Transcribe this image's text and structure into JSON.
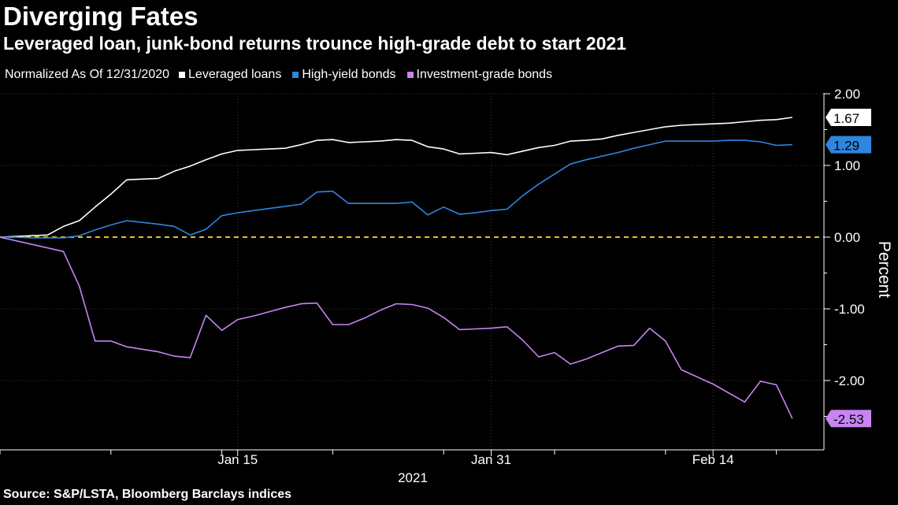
{
  "chart_data": {
    "type": "line",
    "title": "Diverging Fates",
    "subtitle": "Leveraged loan, junk-bond returns trounce high-grade debt to start 2021",
    "legend_note": "Normalized As Of 12/31/2020",
    "ylabel": "Percent",
    "xlabel": "2021",
    "source": "Source: S&P/LSTA, Bloomberg Barclays indices",
    "ylim": [
      -2.9,
      2.0
    ],
    "xlim": [
      "2020-12-31",
      "2021-02-21"
    ],
    "y_ticks": [
      {
        "value": 2.0,
        "label": "2.00"
      },
      {
        "value": 1.0,
        "label": "1.00"
      },
      {
        "value": 0.0,
        "label": "0.00"
      },
      {
        "value": -1.0,
        "label": "-1.00"
      },
      {
        "value": -2.0,
        "label": "-2.00"
      }
    ],
    "x_ticks": [
      {
        "date": "2021-01-15",
        "label": "Jan 15"
      },
      {
        "date": "2021-01-31",
        "label": "Jan 31"
      },
      {
        "date": "2021-02-14",
        "label": "Feb 14"
      }
    ],
    "zero_line_color": "#e6c21e",
    "series": [
      {
        "name": "Leveraged loans",
        "color": "#ffffff",
        "end_label": "1.67",
        "points": [
          [
            "2020-12-31",
            0.0
          ],
          [
            "2021-01-01",
            0.01
          ],
          [
            "2021-01-02",
            0.02
          ],
          [
            "2021-01-03",
            0.03
          ],
          [
            "2021-01-04",
            0.15
          ],
          [
            "2021-01-05",
            0.23
          ],
          [
            "2021-01-06",
            0.42
          ],
          [
            "2021-01-07",
            0.6
          ],
          [
            "2021-01-08",
            0.8
          ],
          [
            "2021-01-09",
            0.81
          ],
          [
            "2021-01-10",
            0.82
          ],
          [
            "2021-01-11",
            0.92
          ],
          [
            "2021-01-12",
            0.99
          ],
          [
            "2021-01-13",
            1.08
          ],
          [
            "2021-01-14",
            1.16
          ],
          [
            "2021-01-15",
            1.21
          ],
          [
            "2021-01-16",
            1.22
          ],
          [
            "2021-01-17",
            1.23
          ],
          [
            "2021-01-18",
            1.24
          ],
          [
            "2021-01-19",
            1.29
          ],
          [
            "2021-01-20",
            1.35
          ],
          [
            "2021-01-21",
            1.36
          ],
          [
            "2021-01-22",
            1.32
          ],
          [
            "2021-01-23",
            1.33
          ],
          [
            "2021-01-24",
            1.34
          ],
          [
            "2021-01-25",
            1.36
          ],
          [
            "2021-01-26",
            1.35
          ],
          [
            "2021-01-27",
            1.26
          ],
          [
            "2021-01-28",
            1.23
          ],
          [
            "2021-01-29",
            1.16
          ],
          [
            "2021-01-30",
            1.17
          ],
          [
            "2021-01-31",
            1.18
          ],
          [
            "2021-02-01",
            1.15
          ],
          [
            "2021-02-02",
            1.2
          ],
          [
            "2021-02-03",
            1.25
          ],
          [
            "2021-02-04",
            1.28
          ],
          [
            "2021-02-05",
            1.34
          ],
          [
            "2021-02-06",
            1.35
          ],
          [
            "2021-02-07",
            1.37
          ],
          [
            "2021-02-08",
            1.42
          ],
          [
            "2021-02-09",
            1.46
          ],
          [
            "2021-02-10",
            1.5
          ],
          [
            "2021-02-11",
            1.54
          ],
          [
            "2021-02-12",
            1.56
          ],
          [
            "2021-02-13",
            1.57
          ],
          [
            "2021-02-14",
            1.58
          ],
          [
            "2021-02-15",
            1.59
          ],
          [
            "2021-02-16",
            1.61
          ],
          [
            "2021-02-17",
            1.63
          ],
          [
            "2021-02-18",
            1.64
          ],
          [
            "2021-02-19",
            1.67
          ]
        ]
      },
      {
        "name": "High-yield bonds",
        "color": "#2f86df",
        "end_label": "1.29",
        "points": [
          [
            "2020-12-31",
            0.0
          ],
          [
            "2021-01-01",
            0.0
          ],
          [
            "2021-01-02",
            -0.01
          ],
          [
            "2021-01-03",
            -0.01
          ],
          [
            "2021-01-04",
            -0.01
          ],
          [
            "2021-01-05",
            0.02
          ],
          [
            "2021-01-06",
            0.1
          ],
          [
            "2021-01-07",
            0.17
          ],
          [
            "2021-01-08",
            0.23
          ],
          [
            "2021-01-10",
            0.18
          ],
          [
            "2021-01-11",
            0.15
          ],
          [
            "2021-01-12",
            0.03
          ],
          [
            "2021-01-13",
            0.11
          ],
          [
            "2021-01-14",
            0.3
          ],
          [
            "2021-01-15",
            0.34
          ],
          [
            "2021-01-16",
            0.37
          ],
          [
            "2021-01-17",
            0.4
          ],
          [
            "2021-01-18",
            0.43
          ],
          [
            "2021-01-19",
            0.46
          ],
          [
            "2021-01-20",
            0.63
          ],
          [
            "2021-01-21",
            0.64
          ],
          [
            "2021-01-22",
            0.47
          ],
          [
            "2021-01-23",
            0.47
          ],
          [
            "2021-01-24",
            0.47
          ],
          [
            "2021-01-25",
            0.47
          ],
          [
            "2021-01-26",
            0.49
          ],
          [
            "2021-01-27",
            0.31
          ],
          [
            "2021-01-28",
            0.42
          ],
          [
            "2021-01-29",
            0.32
          ],
          [
            "2021-01-30",
            0.34
          ],
          [
            "2021-01-31",
            0.37
          ],
          [
            "2021-02-01",
            0.39
          ],
          [
            "2021-02-02",
            0.58
          ],
          [
            "2021-02-03",
            0.74
          ],
          [
            "2021-02-04",
            0.88
          ],
          [
            "2021-02-05",
            1.02
          ],
          [
            "2021-02-06",
            1.08
          ],
          [
            "2021-02-07",
            1.13
          ],
          [
            "2021-02-08",
            1.18
          ],
          [
            "2021-02-09",
            1.24
          ],
          [
            "2021-02-10",
            1.29
          ],
          [
            "2021-02-11",
            1.34
          ],
          [
            "2021-02-12",
            1.34
          ],
          [
            "2021-02-13",
            1.34
          ],
          [
            "2021-02-14",
            1.34
          ],
          [
            "2021-02-15",
            1.35
          ],
          [
            "2021-02-16",
            1.35
          ],
          [
            "2021-02-17",
            1.33
          ],
          [
            "2021-02-18",
            1.28
          ],
          [
            "2021-02-19",
            1.29
          ]
        ]
      },
      {
        "name": "Investment-grade bonds",
        "color": "#c784f2",
        "end_label": "-2.53",
        "points": [
          [
            "2020-12-31",
            0.0
          ],
          [
            "2021-01-04",
            -0.2
          ],
          [
            "2021-01-05",
            -0.68
          ],
          [
            "2021-01-06",
            -1.45
          ],
          [
            "2021-01-07",
            -1.45
          ],
          [
            "2021-01-08",
            -1.53
          ],
          [
            "2021-01-10",
            -1.6
          ],
          [
            "2021-01-11",
            -1.66
          ],
          [
            "2021-01-12",
            -1.68
          ],
          [
            "2021-01-13",
            -1.09
          ],
          [
            "2021-01-14",
            -1.3
          ],
          [
            "2021-01-15",
            -1.15
          ],
          [
            "2021-01-16",
            -1.1
          ],
          [
            "2021-01-17",
            -1.04
          ],
          [
            "2021-01-18",
            -0.98
          ],
          [
            "2021-01-19",
            -0.93
          ],
          [
            "2021-01-20",
            -0.92
          ],
          [
            "2021-01-21",
            -1.22
          ],
          [
            "2021-01-22",
            -1.22
          ],
          [
            "2021-01-23",
            -1.13
          ],
          [
            "2021-01-24",
            -1.02
          ],
          [
            "2021-01-25",
            -0.93
          ],
          [
            "2021-01-26",
            -0.94
          ],
          [
            "2021-01-27",
            -0.99
          ],
          [
            "2021-01-28",
            -1.12
          ],
          [
            "2021-01-29",
            -1.29
          ],
          [
            "2021-01-30",
            -1.28
          ],
          [
            "2021-01-31",
            -1.27
          ],
          [
            "2021-02-01",
            -1.25
          ],
          [
            "2021-02-02",
            -1.44
          ],
          [
            "2021-02-03",
            -1.67
          ],
          [
            "2021-02-04",
            -1.61
          ],
          [
            "2021-02-05",
            -1.77
          ],
          [
            "2021-02-06",
            -1.7
          ],
          [
            "2021-02-07",
            -1.61
          ],
          [
            "2021-02-08",
            -1.52
          ],
          [
            "2021-02-09",
            -1.51
          ],
          [
            "2021-02-10",
            -1.27
          ],
          [
            "2021-02-11",
            -1.45
          ],
          [
            "2021-02-12",
            -1.85
          ],
          [
            "2021-02-14",
            -2.05
          ],
          [
            "2021-02-16",
            -2.3
          ],
          [
            "2021-02-17",
            -2.01
          ],
          [
            "2021-02-18",
            -2.06
          ],
          [
            "2021-02-19",
            -2.53
          ]
        ]
      }
    ]
  }
}
